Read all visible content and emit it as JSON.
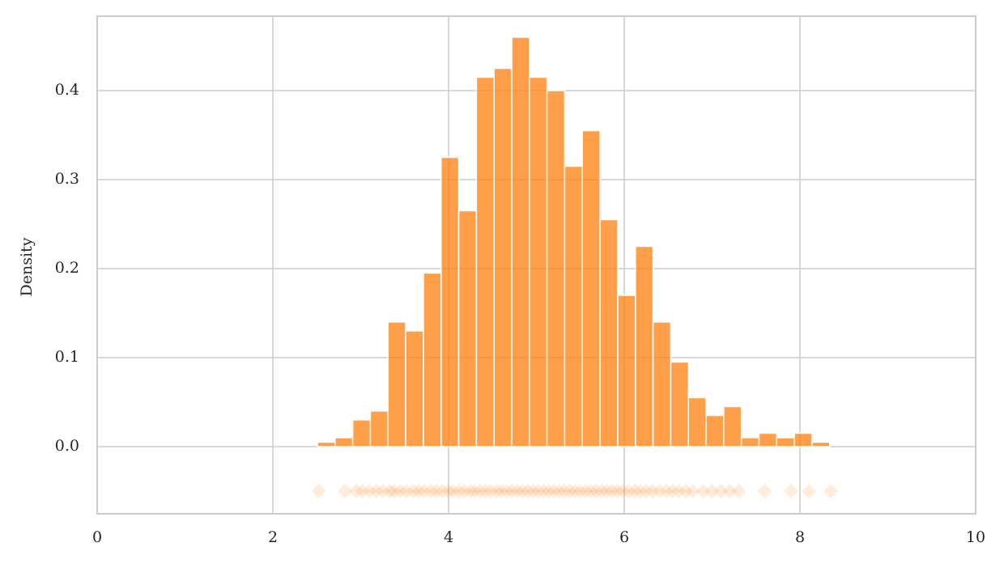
{
  "chart_data": {
    "type": "histogram",
    "ylabel": "Density",
    "bins": [
      2.507,
      2.708,
      2.909,
      3.11,
      3.311,
      3.512,
      3.714,
      3.915,
      4.116,
      4.317,
      4.518,
      4.719,
      4.92,
      5.121,
      5.322,
      5.523,
      5.725,
      5.926,
      6.127,
      6.328,
      6.529,
      6.73,
      6.931,
      7.132,
      7.333,
      7.534,
      7.736,
      7.937,
      8.138,
      8.339
    ],
    "values": [
      0.005,
      0.01,
      0.03,
      0.04,
      0.14,
      0.13,
      0.195,
      0.325,
      0.265,
      0.415,
      0.425,
      0.46,
      0.415,
      0.4,
      0.315,
      0.355,
      0.255,
      0.17,
      0.225,
      0.14,
      0.095,
      0.055,
      0.035,
      0.045,
      0.01,
      0.015,
      0.01,
      0.015,
      0.005
    ],
    "color": "#ff7f0e",
    "rug": {
      "y": -0.05,
      "x": [
        2.52,
        2.82,
        2.95,
        3.02,
        3.1,
        3.18,
        3.25,
        3.33,
        3.38,
        3.45,
        3.52,
        3.6,
        3.66,
        3.72,
        3.8,
        3.86,
        3.93,
        4.0,
        4.05,
        4.12,
        4.18,
        4.25,
        4.3,
        4.36,
        4.42,
        4.48,
        4.55,
        4.6,
        4.66,
        4.72,
        4.78,
        4.84,
        4.9,
        4.96,
        5.02,
        5.08,
        5.14,
        5.2,
        5.26,
        5.32,
        5.38,
        5.44,
        5.5,
        5.56,
        5.62,
        5.68,
        5.74,
        5.8,
        5.86,
        5.92,
        5.98,
        6.05,
        6.12,
        6.18,
        6.25,
        6.32,
        6.4,
        6.48,
        6.55,
        6.62,
        6.7,
        6.78,
        6.9,
        7.0,
        7.1,
        7.2,
        7.3,
        7.6,
        7.9,
        8.1,
        8.35
      ]
    },
    "xlim": [
      0,
      10
    ],
    "xticks": [
      0,
      2,
      4,
      6,
      8,
      10
    ],
    "ylim": [
      -0.0755,
      0.4836
    ],
    "yticks": [
      {
        "value": 0,
        "label": "0.0"
      },
      0.1,
      0.2,
      0.3,
      0.4
    ],
    "grid": true
  }
}
